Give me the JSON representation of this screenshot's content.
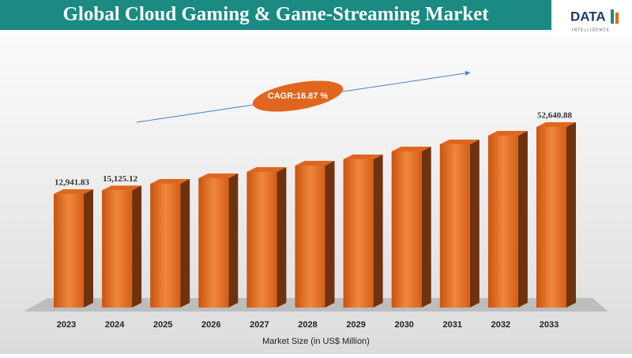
{
  "chart_data": {
    "type": "bar3d",
    "title": "Global Cloud Gaming & Game-Streaming Market",
    "logo": {
      "main": "DATA",
      "sub": "INTELLIGENCE"
    },
    "annotation": "CAGR:16.87 %",
    "xlabel": "Market Size (in US$ Million)",
    "categories": [
      "2023",
      "2024",
      "2025",
      "2026",
      "2027",
      "2028",
      "2029",
      "2030",
      "2031",
      "2032",
      "2033"
    ],
    "values": [
      12941.83,
      15125.12,
      19013,
      22282,
      26018,
      29754,
      33490,
      38160,
      42363,
      47500,
      52640.88
    ],
    "value_labels": [
      "12,941.83",
      "15,125.12",
      null,
      null,
      null,
      null,
      null,
      null,
      null,
      null,
      "52,640.88"
    ],
    "color": "#e0661e",
    "side_color": "#6e3210"
  }
}
